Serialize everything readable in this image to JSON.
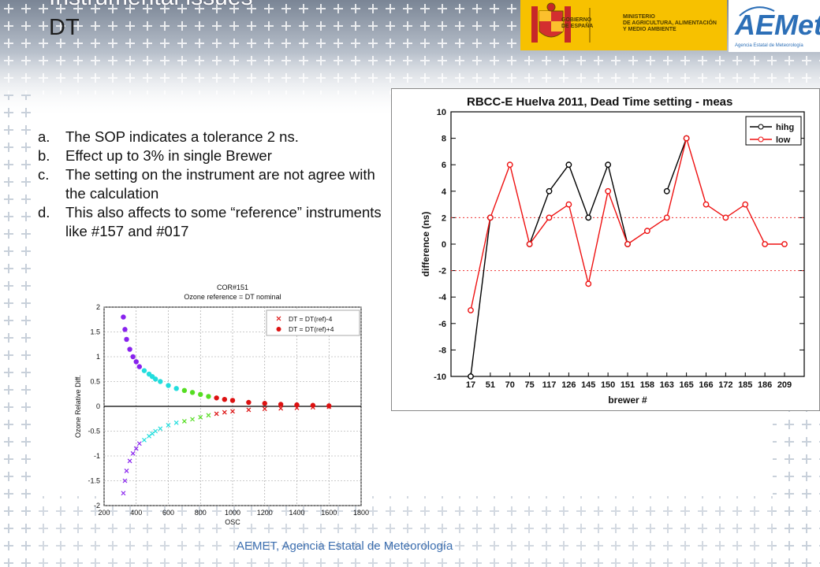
{
  "slide": {
    "title_line1": "Instrumental issues",
    "title_line2": "DT",
    "footer": "AEMET, Agencia Estatal de Meteorología"
  },
  "logos": {
    "gobierno": "GOBIERNO\nDE ESPAÑA",
    "ministerio": "MINISTERIO\nDE AGRICULTURA, ALIMENTACIÓN\nY MEDIO AMBIENTE",
    "aemet": "AEMet",
    "aemet_sub": "Agencia Estatal de Meteorología"
  },
  "bullets": [
    {
      "marker": "a.",
      "text": "The SOP indicates a tolerance 2 ns."
    },
    {
      "marker": "b.",
      "text": "Effect up to 3% in single Brewer"
    },
    {
      "marker": "c.",
      "text": "The setting on the instrument are not agree with the calculation"
    },
    {
      "marker": "d.",
      "text": "This also affects to some “reference” instruments like #157 and #017"
    }
  ],
  "chart_data": [
    {
      "type": "line",
      "title": "RBCC-E Huelva 2011, Dead Time  setting - meas",
      "xlabel": "brewer #",
      "ylabel": "difference (ns)",
      "categories": [
        "17",
        "51",
        "70",
        "75",
        "117",
        "126",
        "145",
        "150",
        "151",
        "158",
        "163",
        "165",
        "166",
        "172",
        "185",
        "186",
        "209"
      ],
      "ylim": [
        -10,
        10
      ],
      "yticks": [
        -10,
        -8,
        -6,
        -4,
        -2,
        0,
        2,
        4,
        6,
        8,
        10
      ],
      "reference_lines": [
        2,
        -2
      ],
      "legend_position": "top-right",
      "series": [
        {
          "name": "hihg",
          "color": "#000000",
          "values": [
            -10,
            2,
            null,
            0,
            4,
            6,
            2,
            6,
            0,
            null,
            4,
            8,
            null,
            null,
            null,
            null,
            null
          ]
        },
        {
          "name": "low",
          "color": "#ee1111",
          "values": [
            -5,
            2,
            6,
            0,
            2,
            3,
            -3,
            4,
            0,
            1,
            2,
            8,
            3,
            2,
            3,
            0,
            0
          ]
        }
      ]
    },
    {
      "type": "scatter",
      "title": "COR#151",
      "subtitle": "Ozone reference = DT nominal",
      "xlabel": "OSC",
      "ylabel": "Ozone Relative Diff.",
      "xlim": [
        200,
        1800
      ],
      "ylim": [
        -2,
        2
      ],
      "xticks": [
        200,
        400,
        600,
        800,
        1000,
        1200,
        1400,
        1600,
        1800
      ],
      "yticks": [
        -2,
        -1.5,
        -1,
        -0.5,
        0,
        0.5,
        1,
        1.5,
        2
      ],
      "grid": true,
      "legend_position": "top-right",
      "legend": [
        "DT = DT(ref)-4",
        "DT = DT(ref)+4"
      ],
      "series": [
        {
          "name": "DT = DT(ref)+4",
          "marker": "dot",
          "color_by_osc": [
            "#8822ee",
            "#22dddd",
            "#55dd22",
            "#dd1111"
          ],
          "x": [
            320,
            330,
            340,
            360,
            380,
            400,
            420,
            450,
            480,
            500,
            520,
            550,
            600,
            650,
            700,
            750,
            800,
            850,
            900,
            950,
            1000,
            1100,
            1200,
            1300,
            1400,
            1500,
            1600
          ],
          "y": [
            1.8,
            1.55,
            1.35,
            1.15,
            1.0,
            0.9,
            0.8,
            0.72,
            0.65,
            0.6,
            0.55,
            0.5,
            0.42,
            0.36,
            0.32,
            0.28,
            0.24,
            0.2,
            0.17,
            0.14,
            0.12,
            0.08,
            0.06,
            0.04,
            0.03,
            0.02,
            0.01
          ]
        },
        {
          "name": "DT = DT(ref)-4",
          "marker": "x",
          "color_by_osc": [
            "#8822ee",
            "#22dddd",
            "#55dd22",
            "#dd1111"
          ],
          "x": [
            320,
            330,
            340,
            360,
            380,
            400,
            420,
            450,
            480,
            500,
            520,
            550,
            600,
            650,
            700,
            750,
            800,
            850,
            900,
            950,
            1000,
            1100,
            1200,
            1300,
            1400,
            1500,
            1600
          ],
          "y": [
            -1.75,
            -1.5,
            -1.3,
            -1.1,
            -0.95,
            -0.85,
            -0.75,
            -0.68,
            -0.6,
            -0.55,
            -0.5,
            -0.45,
            -0.38,
            -0.33,
            -0.3,
            -0.26,
            -0.22,
            -0.18,
            -0.15,
            -0.12,
            -0.1,
            -0.07,
            -0.05,
            -0.04,
            -0.03,
            -0.02,
            -0.01
          ]
        }
      ]
    }
  ]
}
